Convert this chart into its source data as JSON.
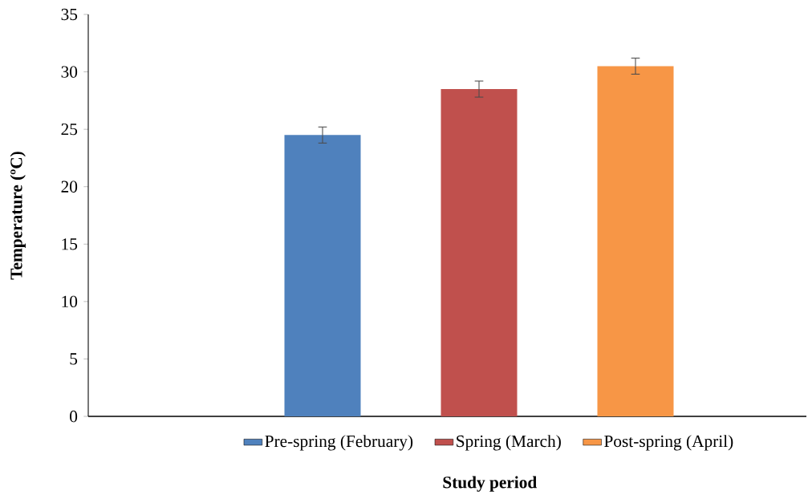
{
  "chart_data": {
    "type": "bar",
    "xlabel": "Study period",
    "ylabel": "Temperature (ºC)",
    "categories": [
      null
    ],
    "series": [
      {
        "name": "Pre-spring (February)",
        "color": "#4f81bd",
        "values": [
          24.5
        ],
        "errors": [
          0.7
        ]
      },
      {
        "name": "Spring (March)",
        "color": "#c0504d",
        "values": [
          28.5
        ],
        "errors": [
          0.7
        ]
      },
      {
        "name": "Post-spring (April)",
        "color": "#f79646",
        "values": [
          30.5
        ],
        "errors": [
          0.7
        ]
      }
    ],
    "ylim": [
      0,
      35
    ],
    "yticks": [
      0,
      5,
      10,
      15,
      20,
      25,
      30,
      35
    ],
    "grid": false,
    "legend": "bottom"
  }
}
